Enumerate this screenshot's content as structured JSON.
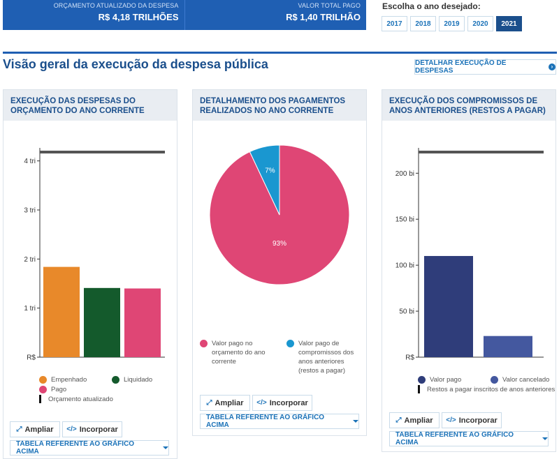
{
  "summary": {
    "budget_label": "ORÇAMENTO ATUALIZADO DA DESPESA",
    "budget_value": "R$ 4,18 TRILHÕES",
    "paid_label": "VALOR TOTAL PAGO",
    "paid_value": "R$ 1,40 TRILHÃO"
  },
  "year_selector": {
    "label": "Escolha o ano desejado:",
    "years": [
      "2017",
      "2018",
      "2019",
      "2020",
      "2021"
    ],
    "selected": "2021"
  },
  "page": {
    "title": "Visão geral da execução da despesa pública",
    "detail_button": "DETALHAR EXECUÇÃO DE DESPESAS"
  },
  "panels": {
    "p1": {
      "title": "EXECUÇÃO DAS DESPESAS DO ORÇAMENTO DO ANO CORRENTE",
      "legend": [
        "Empenhado",
        "Liquidado",
        "Pago",
        "Orçamento atualizado"
      ],
      "expand": "Ampliar",
      "embed": "Incorporar",
      "table": "TABELA REFERENTE AO GRÁFICO ACIMA"
    },
    "p2": {
      "title": "DETALHAMENTO DOS PAGAMENTOS REALIZADOS NO ANO CORRENTE",
      "legend": [
        "Valor pago no orçamento do ano corrente",
        "Valor pago de compromissos dos anos anteriores (restos a pagar)"
      ],
      "expand": "Ampliar",
      "embed": "Incorporar",
      "table": "TABELA REFERENTE AO GRÁFICO ACIMA"
    },
    "p3": {
      "title": "EXECUÇÃO DOS COMPROMISSOS DE ANOS ANTERIORES (RESTOS A PAGAR)",
      "legend": [
        "Valor pago",
        "Valor cancelado",
        "Restos a pagar inscritos de anos anteriores"
      ],
      "expand": "Ampliar",
      "embed": "Incorporar",
      "table": "TABELA REFERENTE AO GRÁFICO ACIMA"
    }
  },
  "colors": {
    "brand_blue": "#1f5fb3",
    "title_blue": "#1b4f8c",
    "link_blue": "#1b72b8",
    "empenhado": "#e8892a",
    "liquidado": "#145a2c",
    "pago": "#df4675",
    "pie_main": "#df4675",
    "pie_other": "#1a97d0",
    "rp_pago": "#2f3d7a",
    "rp_cancelado": "#44589f",
    "reference_line": "#555555"
  },
  "chart_data": [
    {
      "type": "bar",
      "categories": [
        "Empenhado",
        "Liquidado",
        "Pago"
      ],
      "values": [
        1.84,
        1.41,
        1.4
      ],
      "reference": {
        "name": "Orçamento atualizado",
        "value": 4.18
      },
      "yticks": [
        "R$",
        "1 tri",
        "2 tri",
        "3 tri",
        "4 tri"
      ],
      "ytick_values": [
        0,
        1,
        2,
        3,
        4
      ],
      "ylim": [
        0,
        4.18
      ]
    },
    {
      "type": "pie",
      "labels": [
        "Valor pago no orçamento do ano corrente",
        "Valor pago de compromissos dos anos anteriores (restos a pagar)"
      ],
      "values": [
        93,
        7
      ],
      "data_labels": [
        "93%",
        "7%"
      ]
    },
    {
      "type": "bar",
      "categories": [
        "Valor pago",
        "Valor cancelado"
      ],
      "values": [
        110,
        23
      ],
      "reference": {
        "name": "Restos a pagar inscritos de anos anteriores",
        "value": 223
      },
      "yticks": [
        "R$",
        "50 bi",
        "100 bi",
        "150 bi",
        "200 bi"
      ],
      "ytick_values": [
        0,
        50,
        100,
        150,
        200
      ],
      "ylim": [
        0,
        223
      ]
    }
  ]
}
